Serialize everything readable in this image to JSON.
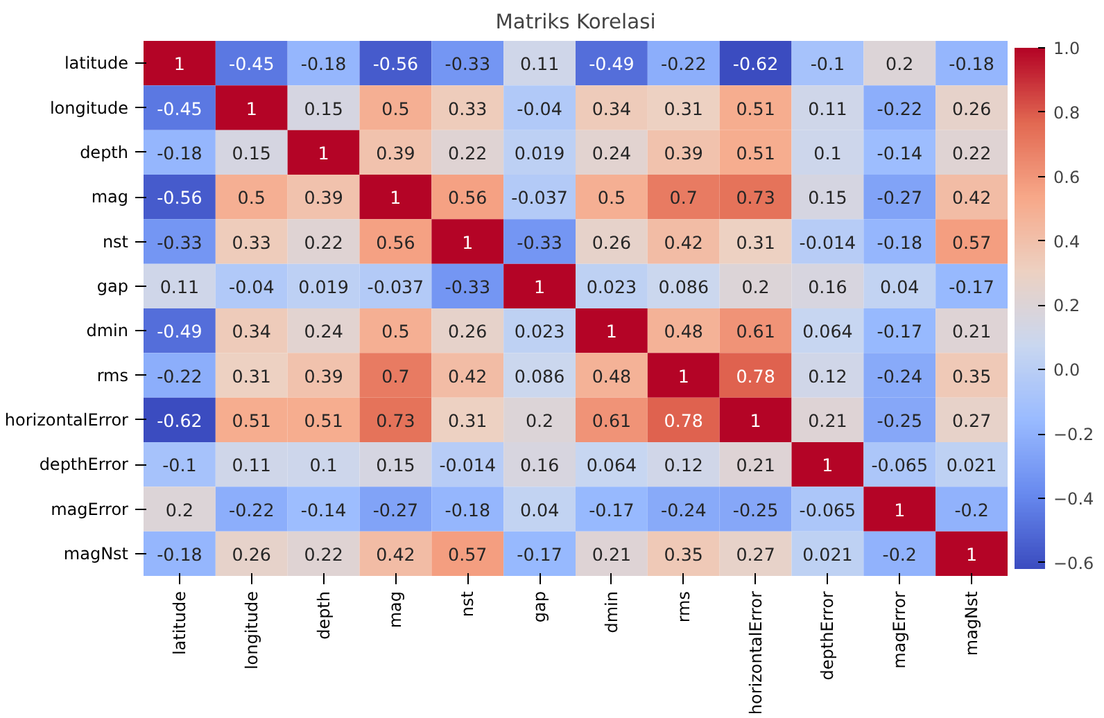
{
  "chart_data": {
    "type": "heatmap",
    "title": "Matriks Korelasi",
    "categories": [
      "latitude",
      "longitude",
      "depth",
      "mag",
      "nst",
      "gap",
      "dmin",
      "rms",
      "horizontalError",
      "depthError",
      "magError",
      "magNst"
    ],
    "y_categories": [
      "latitude",
      "longitude",
      "depth",
      "mag",
      "nst",
      "gap",
      "dmin",
      "rms",
      "horizontalError",
      "depthError",
      "magError",
      "magNst"
    ],
    "cells": [
      [
        1,
        -0.45,
        -0.18,
        -0.56,
        -0.33,
        0.11,
        -0.49,
        -0.22,
        -0.62,
        -0.1,
        0.2,
        -0.18
      ],
      [
        -0.45,
        1,
        0.15,
        0.5,
        0.33,
        -0.04,
        0.34,
        0.31,
        0.51,
        0.11,
        -0.22,
        0.26
      ],
      [
        -0.18,
        0.15,
        1,
        0.39,
        0.22,
        0.019,
        0.24,
        0.39,
        0.51,
        0.1,
        -0.14,
        0.22
      ],
      [
        -0.56,
        0.5,
        0.39,
        1,
        0.56,
        -0.037,
        0.5,
        0.7,
        0.73,
        0.15,
        -0.27,
        0.42
      ],
      [
        -0.33,
        0.33,
        0.22,
        0.56,
        1,
        -0.33,
        0.26,
        0.42,
        0.31,
        -0.014,
        -0.18,
        0.57
      ],
      [
        0.11,
        -0.04,
        0.019,
        -0.037,
        -0.33,
        1,
        0.023,
        0.086,
        0.2,
        0.16,
        0.04,
        -0.17
      ],
      [
        -0.49,
        0.34,
        0.24,
        0.5,
        0.26,
        0.023,
        1,
        0.48,
        0.61,
        0.064,
        -0.17,
        0.21
      ],
      [
        -0.22,
        0.31,
        0.39,
        0.7,
        0.42,
        0.086,
        0.48,
        1,
        0.78,
        0.12,
        -0.24,
        0.35
      ],
      [
        -0.62,
        0.51,
        0.51,
        0.73,
        0.31,
        0.2,
        0.61,
        0.78,
        1,
        0.21,
        -0.25,
        0.27
      ],
      [
        -0.1,
        0.11,
        0.1,
        0.15,
        -0.014,
        0.16,
        0.064,
        0.12,
        0.21,
        1,
        -0.065,
        0.021
      ],
      [
        0.2,
        -0.22,
        -0.14,
        -0.27,
        -0.18,
        0.04,
        -0.17,
        -0.24,
        -0.25,
        -0.065,
        1,
        -0.2
      ],
      [
        -0.18,
        0.26,
        0.22,
        0.42,
        0.57,
        -0.17,
        0.21,
        0.35,
        0.27,
        0.021,
        -0.2,
        1
      ]
    ],
    "data_labels": true,
    "clim": [
      -0.62,
      1.0
    ],
    "cticks": [
      {
        "value": -0.6,
        "label": "−0.6"
      },
      {
        "value": -0.4,
        "label": "−0.4"
      },
      {
        "value": -0.2,
        "label": "−0.2"
      },
      {
        "value": 0,
        "label": "0.0"
      },
      {
        "value": 0.2,
        "label": "0.2"
      },
      {
        "value": 0.4,
        "label": "0.4"
      },
      {
        "value": 0.6,
        "label": "0.6"
      },
      {
        "value": 0.8,
        "label": "0.8"
      },
      {
        "value": 1,
        "label": "1.0"
      }
    ]
  }
}
